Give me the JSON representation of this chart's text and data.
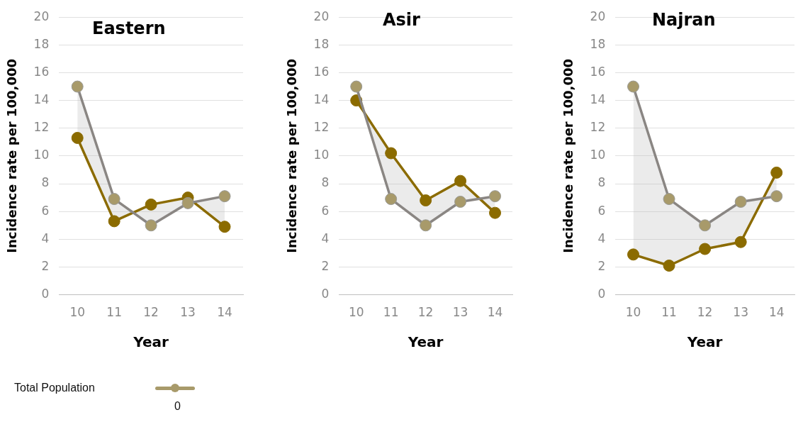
{
  "chart_data": [
    {
      "type": "line",
      "title": "Eastern",
      "xlabel": "Year",
      "ylabel": "Incidence rate per 100,000",
      "categories": [
        "10",
        "11",
        "12",
        "13",
        "14"
      ],
      "ylim": [
        0,
        20
      ],
      "yticks": [
        0,
        2,
        4,
        6,
        8,
        10,
        12,
        14,
        16,
        18,
        20
      ],
      "grid": "y",
      "marker": "circle",
      "legend": "bottom left",
      "annotations": [
        "0"
      ],
      "series": [
        {
          "name": "Total Population",
          "color": "#a89a6a",
          "values": [
            15,
            6.9,
            5.0,
            6.6,
            7.1
          ]
        },
        {
          "color": "#8b6b00",
          "values": [
            11.3,
            5.3,
            6.5,
            7.0,
            4.9
          ],
          "lower": [
            11.3,
            5.3,
            6.5,
            7.0,
            4.9
          ],
          "upper": [
            15,
            6.9,
            5.0,
            6.6,
            7.1
          ]
        }
      ]
    },
    {
      "type": "line",
      "title": "Asir",
      "xlabel": "Year",
      "ylabel": "Incidence rate per 100,000",
      "categories": [
        "10",
        "11",
        "12",
        "13",
        "14"
      ],
      "ylim": [
        0,
        20
      ],
      "yticks": [
        0,
        2,
        4,
        6,
        8,
        10,
        12,
        14,
        16,
        18,
        20
      ],
      "grid": "y",
      "marker": "circle",
      "series": [
        {
          "color": "#a89a6a",
          "values": [
            15,
            6.9,
            5.0,
            6.7,
            7.1
          ]
        },
        {
          "color": "#8b6b00",
          "values": [
            14,
            10.2,
            6.8,
            8.2,
            5.9
          ],
          "lower": [
            14,
            10.2,
            6.8,
            8.2,
            5.9
          ],
          "upper": [
            15,
            6.9,
            5.0,
            6.7,
            7.1
          ]
        }
      ]
    },
    {
      "type": "line",
      "title": "Najran",
      "xlabel": "Year",
      "ylabel": "Incidence rate per 100,000",
      "categories": [
        "10",
        "11",
        "12",
        "13",
        "14"
      ],
      "ylim": [
        0,
        20
      ],
      "yticks": [
        0,
        2,
        4,
        6,
        8,
        10,
        12,
        14,
        16,
        18,
        20
      ],
      "grid": "y",
      "marker": "circle",
      "series": [
        {
          "color": "#a89a6a",
          "values": [
            15,
            6.9,
            5.0,
            6.7,
            7.1
          ]
        },
        {
          "color": "#8b6b00",
          "values": [
            2.9,
            2.1,
            3.3,
            3.8,
            8.8
          ],
          "lower": [
            2.9,
            2.1,
            3.3,
            3.8,
            8.8
          ],
          "upper": [
            15,
            6.9,
            5.0,
            6.7,
            7.1
          ]
        }
      ]
    }
  ]
}
